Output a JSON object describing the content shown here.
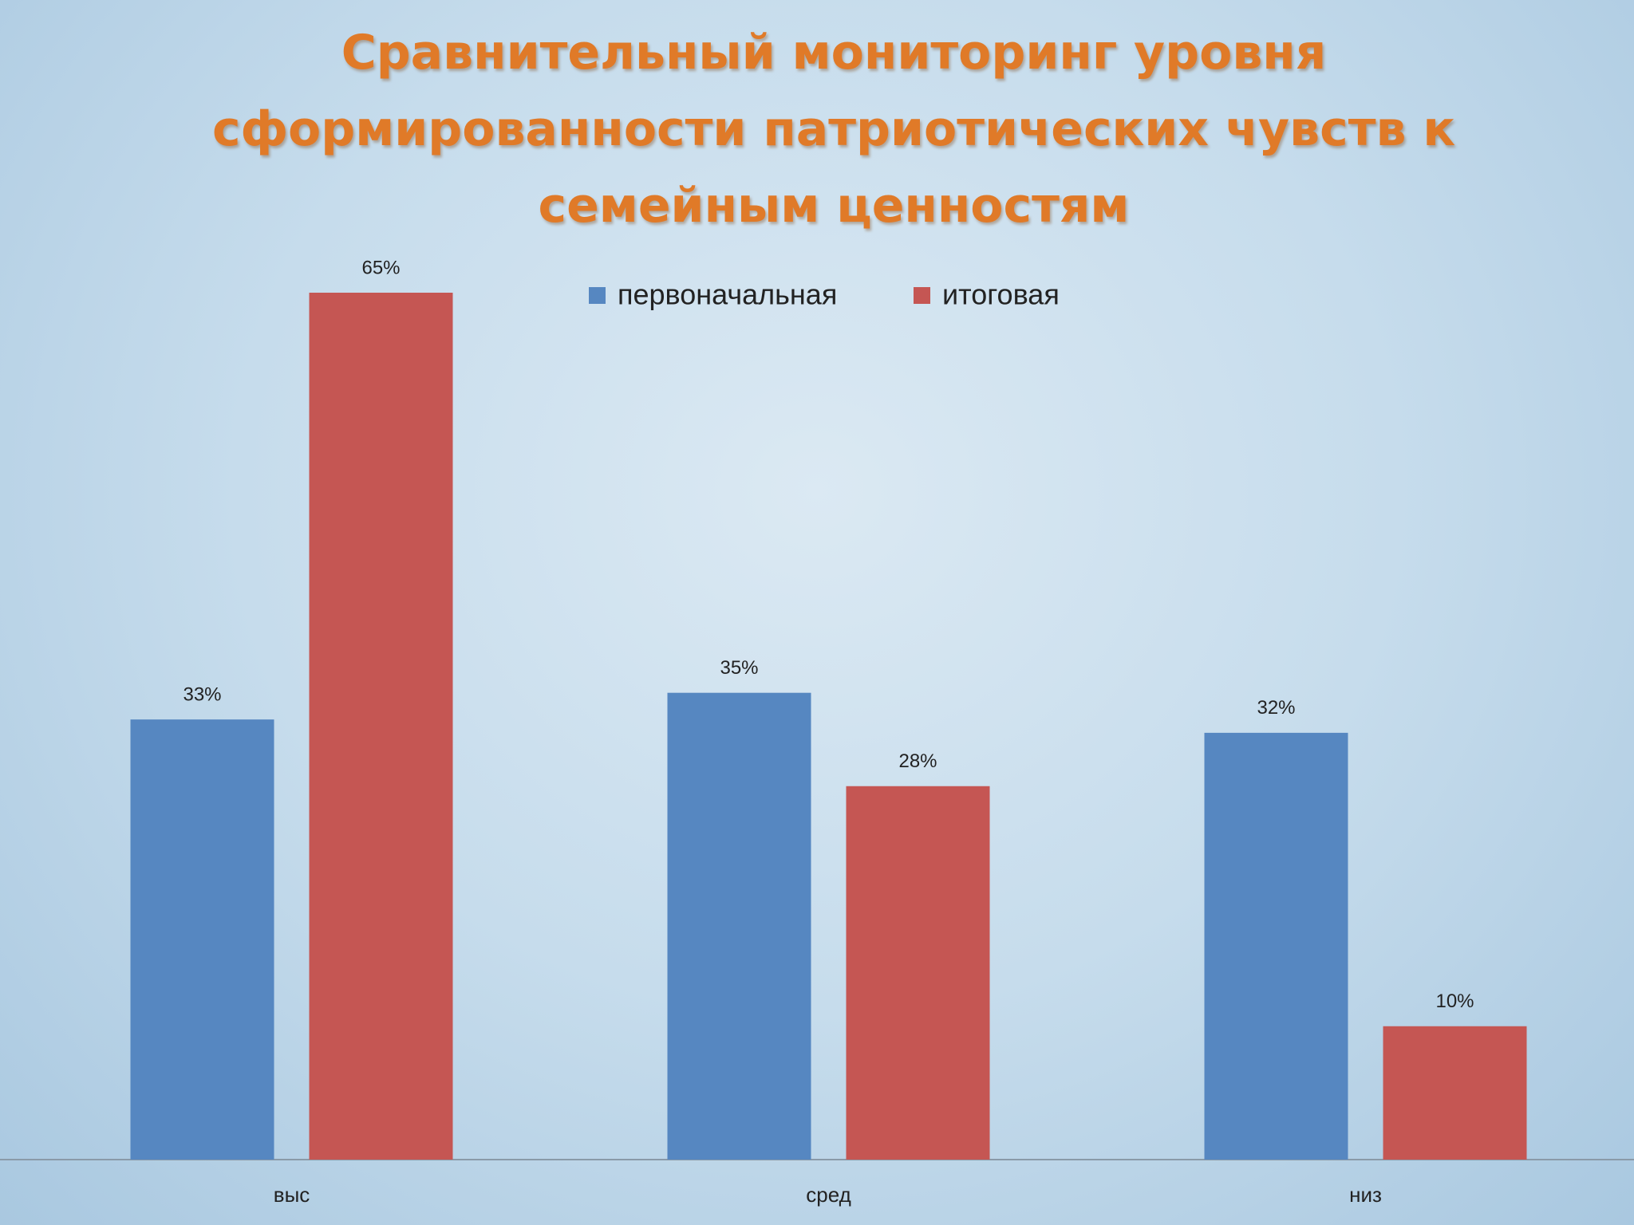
{
  "chart_data": {
    "type": "bar",
    "title": "Сравнительный мониторинг уровня сформированности патриотических чувств к семейным ценностям",
    "categories": [
      "выс",
      "сред",
      "низ"
    ],
    "series": [
      {
        "name": "первоначальная",
        "color": "#5687c1",
        "values": [
          33,
          35,
          32
        ],
        "value_labels": [
          "33%",
          "35%",
          "32%"
        ]
      },
      {
        "name": "итоговая",
        "color": "#c55653",
        "values": [
          65,
          28,
          10
        ],
        "value_labels": [
          "65%",
          "28%",
          "10%"
        ]
      }
    ],
    "legend": "top"
  }
}
